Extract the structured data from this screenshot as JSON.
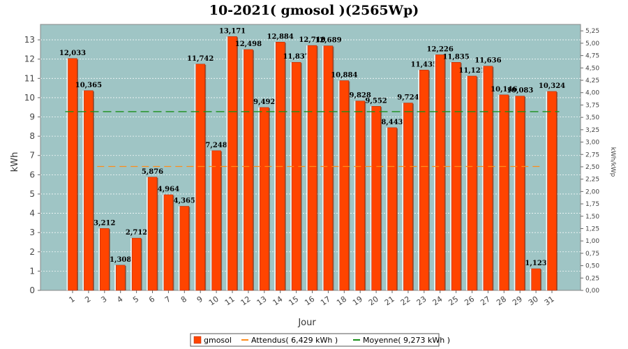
{
  "chart_data": {
    "type": "bar",
    "title": "10-2021( gmosol )(2565Wp)",
    "xlabel": "Jour",
    "ylabel": "kWh",
    "y2label": "kWh/kWp",
    "ylim": [
      0,
      13.8
    ],
    "y2lim": [
      0,
      5.38
    ],
    "categories": [
      "1",
      "2",
      "3",
      "4",
      "5",
      "6",
      "7",
      "8",
      "9",
      "10",
      "11",
      "12",
      "13",
      "14",
      "15",
      "16",
      "17",
      "18",
      "19",
      "20",
      "21",
      "22",
      "23",
      "24",
      "25",
      "26",
      "27",
      "28",
      "29",
      "30",
      "31"
    ],
    "series": [
      {
        "name": "gmosol",
        "color": "#ff4400",
        "values": [
          12.033,
          10.365,
          3.212,
          1.308,
          2.712,
          5.876,
          4.964,
          4.365,
          11.742,
          7.248,
          13.171,
          12.498,
          9.492,
          12.884,
          11.837,
          12.71,
          12.689,
          10.884,
          9.828,
          9.552,
          8.443,
          9.724,
          11.435,
          12.226,
          11.835,
          11.121,
          11.636,
          10.146,
          10.083,
          1.123,
          10.324
        ],
        "data_labels": [
          "12,033",
          "10,365",
          "3,212",
          "1,308",
          "2,712",
          "5,876",
          "4,964",
          "4,365",
          "11,742",
          "7,248",
          "13,171",
          "12,498",
          "9,492",
          "12,884",
          "11,837",
          "12,710",
          "12,689",
          "10,884",
          "9,828",
          "9,552",
          "8,443",
          "9,724",
          "11,435",
          "12,226",
          "11,835",
          "11,121",
          "11,636",
          "10,146",
          "10,083",
          "1,123",
          "10,324"
        ]
      }
    ],
    "reference_lines": {
      "attendus": {
        "value": 6.429,
        "color": "#ff8c1a",
        "dash": true,
        "from_day": 3,
        "to_day": 30
      },
      "moyenne": {
        "value": 9.273,
        "color": "#1a8f1a",
        "dash": true
      }
    },
    "yticks": [
      "0",
      "1",
      "2",
      "3",
      "4",
      "5",
      "6",
      "7",
      "8",
      "9",
      "10",
      "11",
      "12",
      "13"
    ],
    "y2ticks": [
      "0,00",
      "0,25",
      "0,50",
      "0,75",
      "1,00",
      "1,25",
      "1,50",
      "1,75",
      "2,00",
      "2,25",
      "2,50",
      "2,75",
      "3,00",
      "3,25",
      "3,50",
      "3,75",
      "4,00",
      "4,25",
      "4,50",
      "4,75",
      "5,00",
      "5,25"
    ],
    "legend": [
      {
        "label": "gmosol",
        "kind": "box",
        "color": "#ff4400"
      },
      {
        "label": "Attendus( 6,429 kWh )",
        "kind": "line",
        "color": "#ff8c1a"
      },
      {
        "label": "Moyenne( 9,273 kWh )",
        "kind": "line",
        "color": "#1a8f1a"
      }
    ],
    "legend_position": "bottom-center",
    "grid": true,
    "plot_bg": "#9fc5c5"
  }
}
